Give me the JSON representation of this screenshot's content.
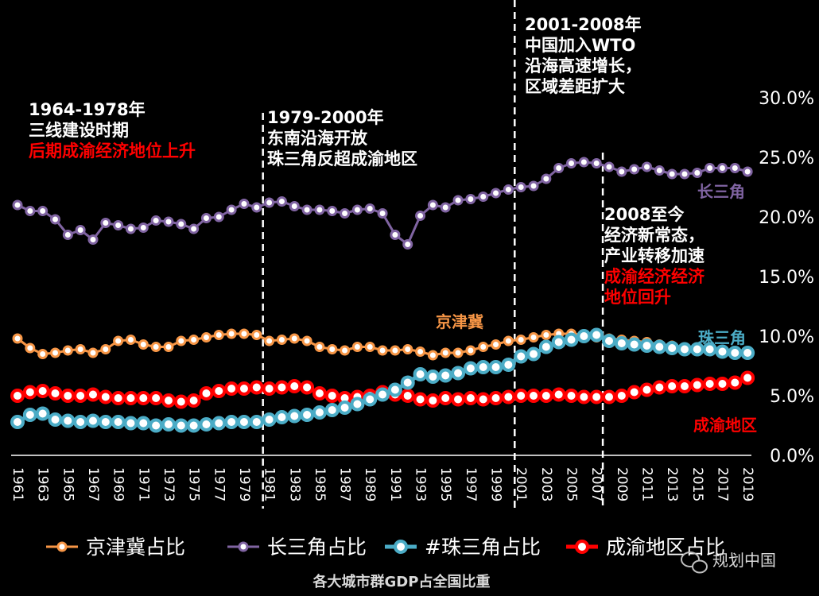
{
  "chart_data": {
    "type": "line",
    "title": "各大城市群GDP占全国比重",
    "x": [
      1961,
      1962,
      1963,
      1964,
      1965,
      1966,
      1967,
      1968,
      1969,
      1970,
      1971,
      1972,
      1973,
      1974,
      1975,
      1976,
      1977,
      1978,
      1979,
      1980,
      1981,
      1982,
      1983,
      1984,
      1985,
      1986,
      1987,
      1988,
      1989,
      1990,
      1991,
      1992,
      1993,
      1994,
      1995,
      1996,
      1997,
      1998,
      1999,
      2000,
      2001,
      2002,
      2003,
      2004,
      2005,
      2006,
      2007,
      2008,
      2009,
      2010,
      2011,
      2012,
      2013,
      2014,
      2015,
      2016,
      2017,
      2018,
      2019
    ],
    "x_tick_labels": [
      "1961",
      "1963",
      "1965",
      "1967",
      "1969",
      "1971",
      "1973",
      "1975",
      "1977",
      "1979",
      "1981",
      "1983",
      "1985",
      "1987",
      "1989",
      "1991",
      "1993",
      "1995",
      "1997",
      "1999",
      "2001",
      "2003",
      "2005",
      "2007",
      "2009",
      "2011",
      "2013",
      "2015",
      "2017",
      "2019"
    ],
    "ylim": [
      0,
      30
    ],
    "y_tick_labels": [
      "0.0%",
      "5.0%",
      "10.0%",
      "15.0%",
      "20.0%",
      "25.0%",
      "30.0%"
    ],
    "series": [
      {
        "name": "京津冀占比",
        "color": "#F79646",
        "values": [
          9.8,
          9.0,
          8.5,
          8.6,
          8.8,
          8.9,
          8.6,
          8.9,
          9.6,
          9.7,
          9.3,
          9.1,
          9.1,
          9.6,
          9.7,
          9.9,
          10.1,
          10.2,
          10.2,
          10.1,
          9.6,
          9.7,
          9.8,
          9.6,
          9.1,
          8.9,
          8.8,
          9.1,
          9.1,
          8.8,
          8.8,
          8.9,
          8.7,
          8.4,
          8.6,
          8.6,
          8.8,
          9.1,
          9.3,
          9.6,
          9.7,
          9.9,
          10.1,
          10.2,
          10.2,
          10.1,
          9.9,
          9.8,
          9.7,
          9.6,
          9.5,
          9.3,
          9.2,
          9.0,
          8.9,
          8.8,
          8.7,
          8.6,
          8.5
        ]
      },
      {
        "name": "长三角占比",
        "color": "#8064A2",
        "values": [
          21.0,
          20.5,
          20.5,
          19.8,
          18.5,
          18.9,
          18.1,
          19.5,
          19.3,
          19.0,
          19.1,
          19.7,
          19.6,
          19.4,
          19.0,
          19.9,
          20.0,
          20.6,
          21.1,
          20.8,
          21.2,
          21.3,
          20.9,
          20.6,
          20.6,
          20.5,
          20.3,
          20.6,
          20.7,
          20.3,
          18.5,
          17.7,
          20.1,
          21.0,
          20.8,
          21.4,
          21.5,
          21.7,
          22.0,
          22.3,
          22.5,
          22.6,
          23.2,
          24.1,
          24.5,
          24.6,
          24.5,
          24.2,
          23.8,
          24.0,
          24.2,
          23.9,
          23.6,
          23.6,
          23.7,
          24.1,
          24.1,
          24.1,
          23.8
        ]
      },
      {
        "name": "#珠三角占比",
        "color": "#4BACC6",
        "values": [
          2.8,
          3.4,
          3.5,
          3.0,
          2.9,
          2.8,
          2.9,
          2.8,
          2.8,
          2.7,
          2.7,
          2.5,
          2.6,
          2.5,
          2.5,
          2.6,
          2.7,
          2.8,
          2.8,
          2.8,
          3.0,
          3.2,
          3.3,
          3.4,
          3.6,
          3.8,
          4.0,
          4.3,
          4.7,
          5.1,
          5.5,
          6.1,
          6.8,
          6.6,
          6.7,
          6.9,
          7.3,
          7.4,
          7.4,
          7.6,
          8.3,
          8.5,
          9.1,
          9.5,
          9.7,
          10.0,
          10.1,
          9.6,
          9.4,
          9.3,
          9.2,
          9.1,
          9.0,
          8.9,
          8.9,
          8.9,
          8.7,
          8.6,
          8.6
        ]
      },
      {
        "name": "成渝地区占比",
        "color": "#FF0000",
        "values": [
          5.0,
          5.3,
          5.4,
          5.2,
          5.0,
          5.0,
          5.1,
          4.9,
          4.8,
          4.8,
          4.8,
          4.8,
          4.6,
          4.5,
          4.6,
          5.2,
          5.4,
          5.6,
          5.6,
          5.7,
          5.6,
          5.7,
          5.8,
          5.7,
          5.2,
          5.0,
          4.8,
          4.9,
          5.0,
          5.3,
          5.1,
          5.0,
          4.7,
          4.6,
          4.8,
          4.7,
          4.8,
          4.7,
          4.8,
          4.9,
          5.0,
          5.0,
          5.0,
          5.1,
          5.0,
          4.9,
          4.9,
          4.9,
          5.0,
          5.3,
          5.5,
          5.7,
          5.8,
          5.8,
          5.9,
          6.0,
          6.0,
          6.1,
          6.5
        ]
      }
    ],
    "series_labels": [
      "长三角",
      "京津冀",
      "珠三角",
      "成渝地区"
    ],
    "dividers": [
      1980.5,
      2000.5,
      2007.5
    ],
    "annotations": [
      {
        "lines": [
          "1964-1978年",
          "三线建设时期"
        ],
        "highlight": [
          "后期成渝经济地位上升"
        ]
      },
      {
        "lines": [
          "1979-2000年",
          "东南沿海开放",
          "珠三角反超成渝地区"
        ],
        "highlight": []
      },
      {
        "lines": [
          "2001-2008年",
          "中国加入WTO",
          "沿海高速增长，",
          "区域差距扩大"
        ],
        "highlight": []
      },
      {
        "lines": [
          "2008至今",
          "经济新常态，",
          "产业转移加速"
        ],
        "highlight": [
          "成渝经济经济",
          "地位回升"
        ]
      }
    ],
    "legend_position": "bottom"
  },
  "watermark": "规划中国",
  "colors": {
    "background": "#000000",
    "text": "#FFFFFF",
    "highlight": "#FF0000",
    "title": "#D9D9D9",
    "axis": "#FFFFFF",
    "divider": "#FFFFFF"
  }
}
